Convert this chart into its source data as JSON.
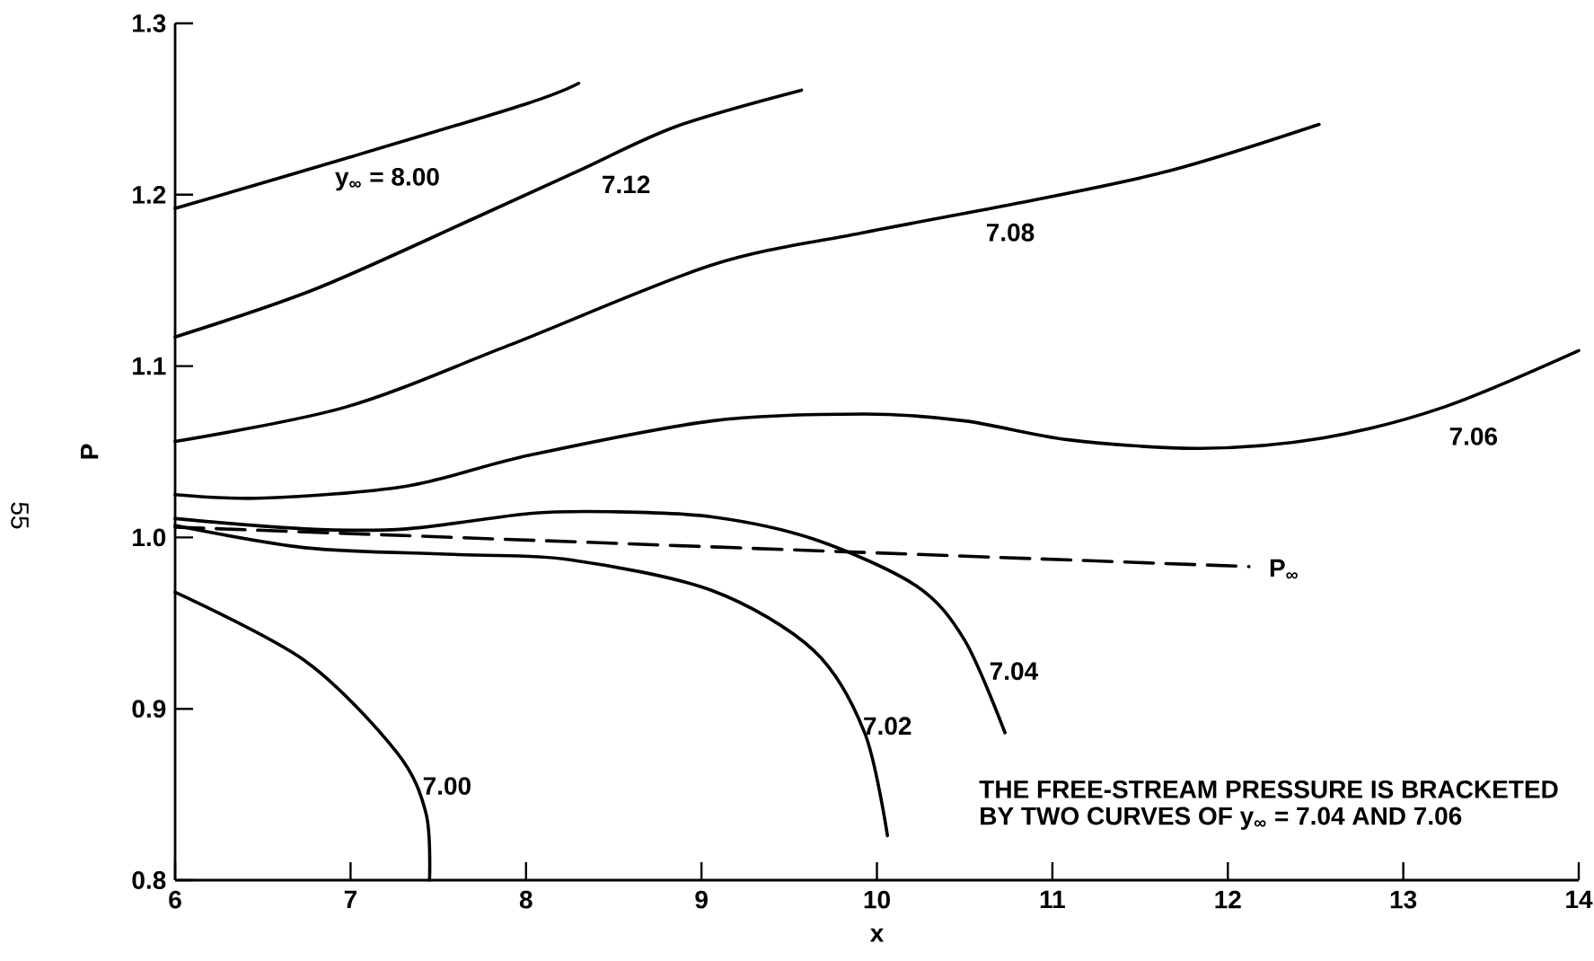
{
  "chart_data": {
    "type": "line",
    "xlabel": "x",
    "ylabel": "P",
    "xlim": [
      6,
      14
    ],
    "ylim": [
      0.8,
      1.3
    ],
    "xticks": [
      6,
      7,
      8,
      9,
      10,
      11,
      12,
      13,
      14
    ],
    "yticks": [
      0.8,
      0.9,
      {
        "value": 1.0,
        "label": "1.0"
      },
      1.1,
      1.2,
      1.3
    ],
    "series": [
      {
        "name": "y$_{∞}$ = 8.00",
        "color": "#000000",
        "x": [
          6,
          7,
          8,
          8.3
        ],
        "values": [
          1.192,
          1.222,
          1.253,
          1.265
        ]
      },
      {
        "name": "7.12",
        "color": "#000000",
        "x": [
          6,
          6.8,
          7.7,
          8.3,
          8.86,
          9.57
        ],
        "values": [
          1.117,
          1.145,
          1.186,
          1.214,
          1.24,
          1.261
        ]
      },
      {
        "name": "7.08",
        "color": "#000000",
        "x": [
          6,
          6.97,
          7.9,
          9.06,
          9.93,
          10.8,
          11.67,
          12.52
        ],
        "values": [
          1.056,
          1.076,
          1.112,
          1.159,
          1.178,
          1.195,
          1.214,
          1.241
        ]
      },
      {
        "name": "7.06",
        "color": "#000000",
        "x": [
          6,
          6.51,
          7.32,
          8.02,
          9.06,
          9.93,
          10.5,
          11.09,
          11.84,
          12.54,
          13.23,
          14
        ],
        "values": [
          1.025,
          1.023,
          1.03,
          1.048,
          1.068,
          1.072,
          1.068,
          1.057,
          1.052,
          1.058,
          1.076,
          1.109
        ]
      },
      {
        "name": "7.04",
        "color": "#000000",
        "x": [
          6,
          6.74,
          7.32,
          8.02,
          8.48,
          9.06,
          9.64,
          10.22,
          10.5,
          10.73
        ],
        "values": [
          1.011,
          1.005,
          1.005,
          1.014,
          1.015,
          1.012,
          0.999,
          0.972,
          0.94,
          0.886
        ]
      },
      {
        "name": "7.02",
        "color": "#000000",
        "x": [
          6,
          6.74,
          7.61,
          8.25,
          9.06,
          9.64,
          9.93,
          10.06
        ],
        "values": [
          1.007,
          0.994,
          0.99,
          0.987,
          0.969,
          0.934,
          0.886,
          0.826
        ]
      },
      {
        "name": "7.00",
        "color": "#000000",
        "x": [
          6,
          6.74,
          7.26,
          7.43,
          7.45
        ],
        "values": [
          0.968,
          0.928,
          0.875,
          0.839,
          0.8
        ]
      },
      {
        "name": "P$_{∞}$",
        "color": "#000000",
        "line_style": "dashed",
        "x": [
          6,
          12.12
        ],
        "values": [
          1.006,
          0.983
        ]
      }
    ],
    "annotations": [
      "THE FREE-STREAM PRESSURE IS BRACKETED",
      "BY TWO CURVES OF y$_{∞}$ = 7.04 AND 7.06",
      "55"
    ]
  }
}
